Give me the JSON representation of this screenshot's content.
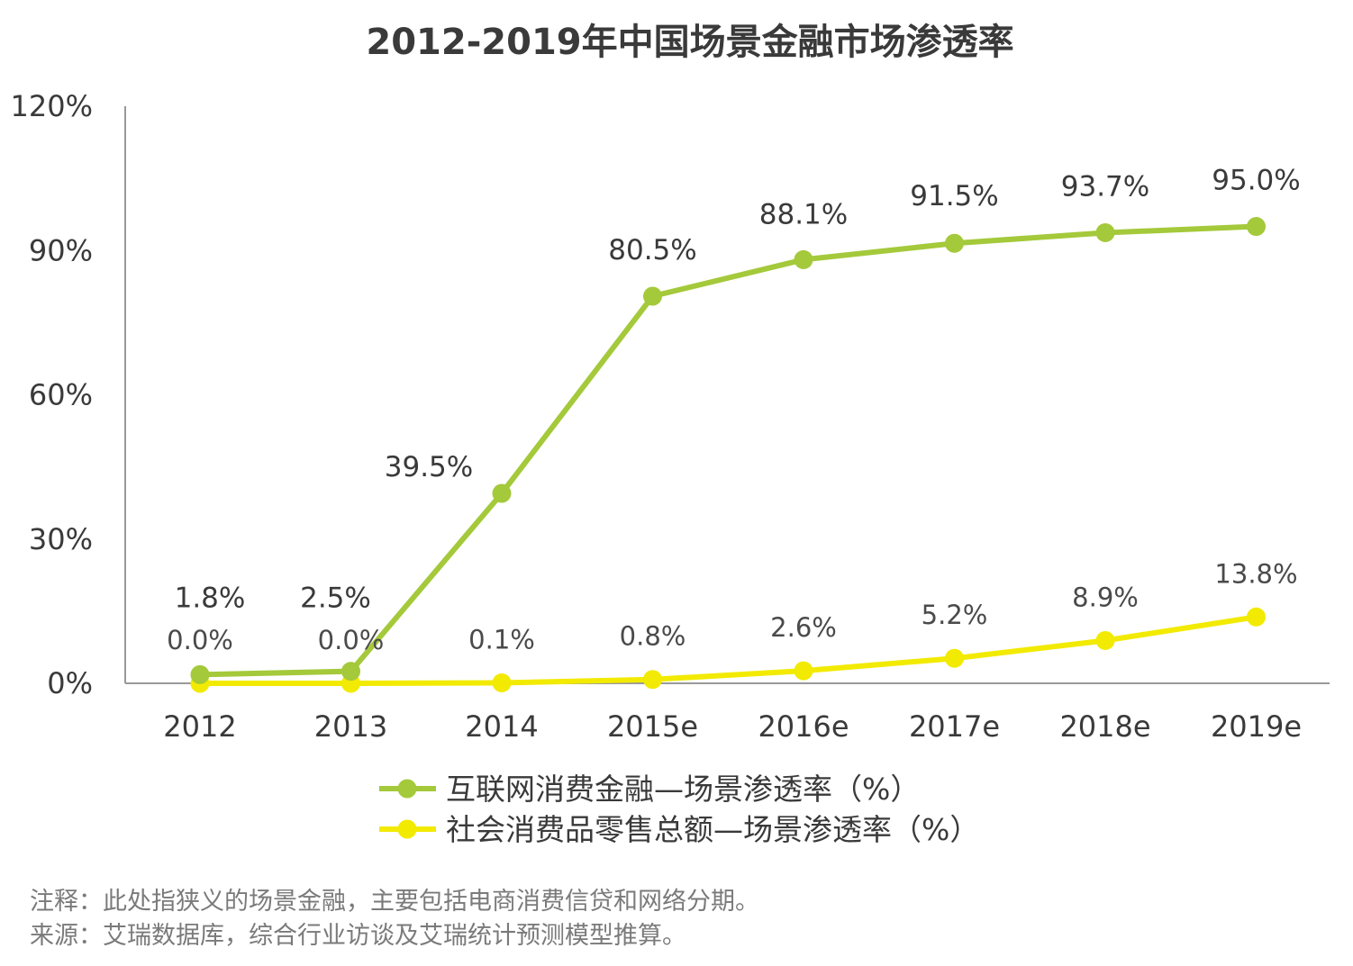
{
  "chart_data": {
    "type": "line",
    "title": "2012-2019年中国场景金融市场渗透率",
    "categories": [
      "2012",
      "2013",
      "2014",
      "2015e",
      "2016e",
      "2017e",
      "2018e",
      "2019e"
    ],
    "y_ticks": [
      "0%",
      "30%",
      "60%",
      "90%",
      "120%"
    ],
    "ylim": [
      0,
      120
    ],
    "grid": false,
    "legend_position": "bottom",
    "series": [
      {
        "name": "互联网消费金融—场景渗透率（%）",
        "color": "#a4c93a",
        "values": [
          1.8,
          2.5,
          39.5,
          80.5,
          88.1,
          91.5,
          93.7,
          95.0
        ],
        "labels": [
          "1.8%",
          "2.5%",
          "39.5%",
          "80.5%",
          "88.1%",
          "91.5%",
          "93.7%",
          "95.0%"
        ]
      },
      {
        "name": "社会消费品零售总额—场景渗透率（%）",
        "color": "#f2ea00",
        "values": [
          0.0,
          0.0,
          0.1,
          0.8,
          2.6,
          5.2,
          8.9,
          13.8
        ],
        "labels": [
          "0.0%",
          "0.0%",
          "0.1%",
          "0.8%",
          "2.6%",
          "5.2%",
          "8.9%",
          "13.8%"
        ]
      }
    ],
    "notes": [
      "注释：此处指狭义的场景金融，主要包括电商消费信贷和网络分期。",
      "来源：艾瑞数据库，综合行业访谈及艾瑞统计预测模型推算。"
    ]
  }
}
